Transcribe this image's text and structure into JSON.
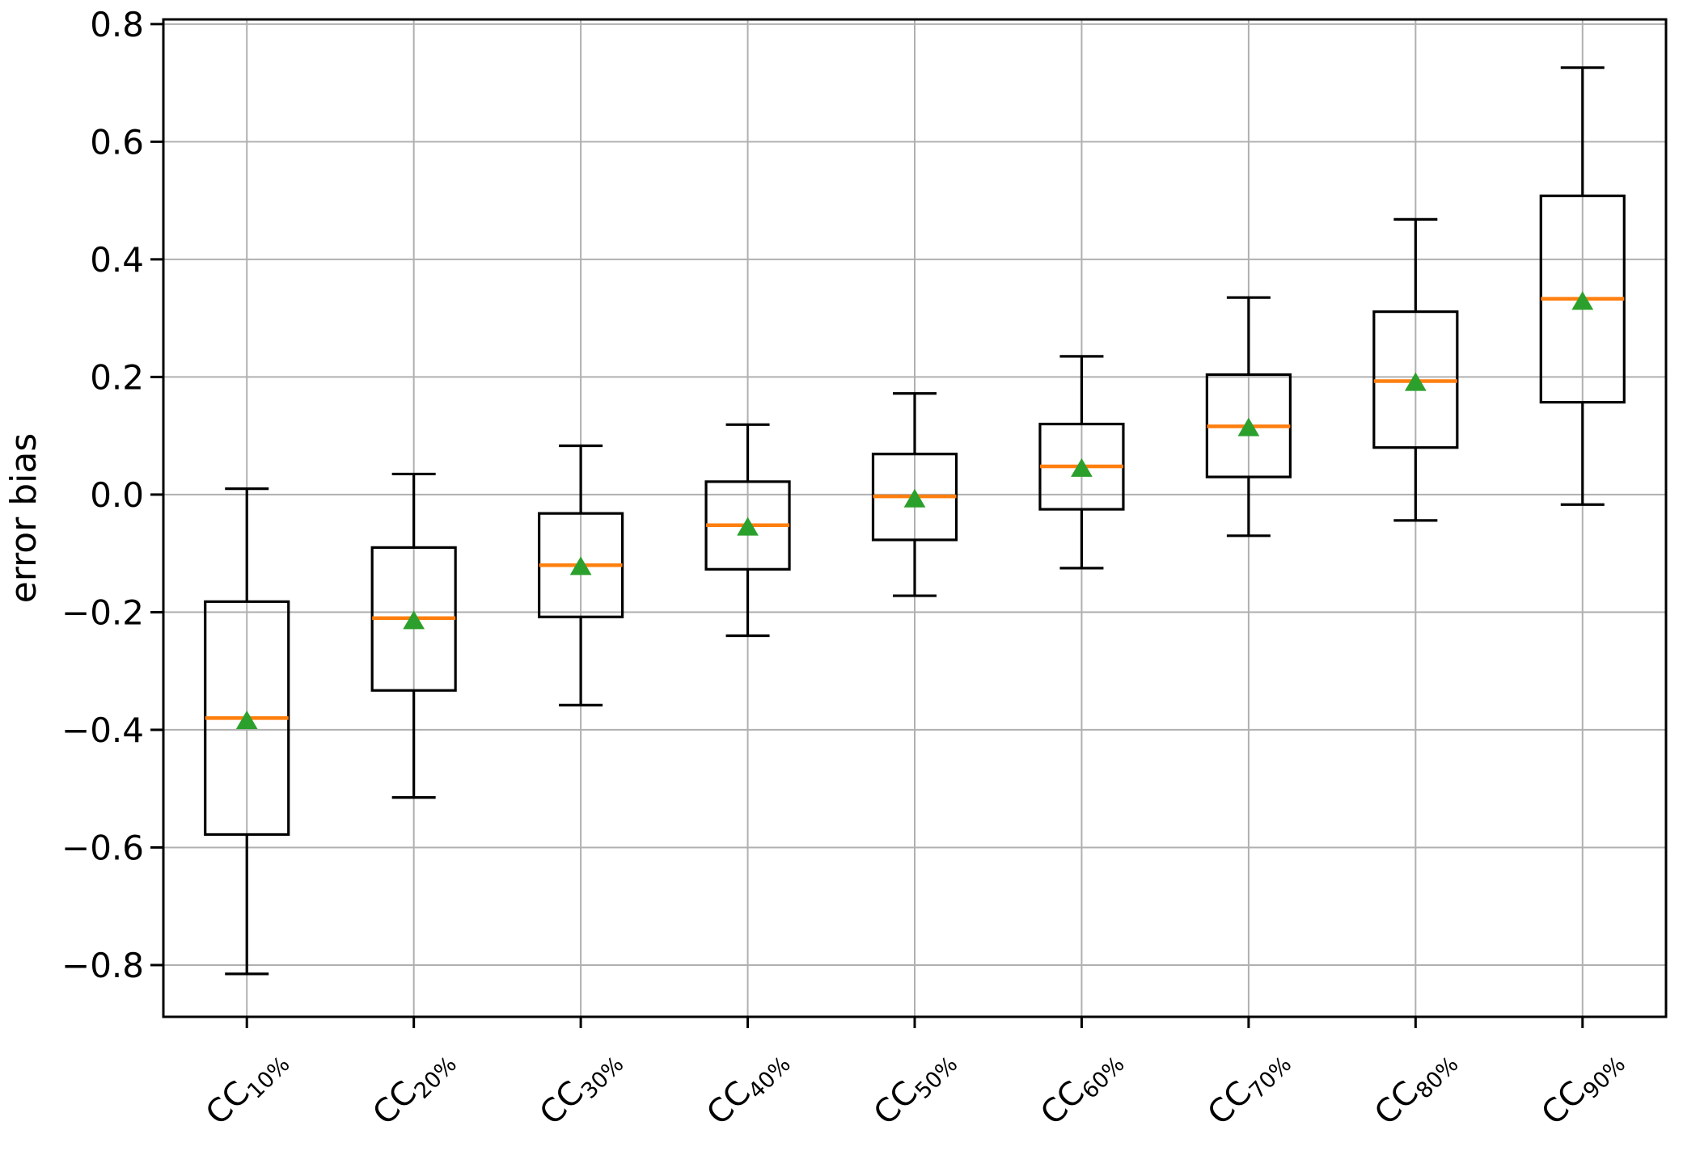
{
  "chart_data": {
    "type": "boxplot",
    "title": "",
    "xlabel": "",
    "ylabel": "error bias",
    "ylim": [
      -0.888,
      0.808
    ],
    "yticks": [
      0.8,
      0.6,
      0.4,
      0.2,
      0.0,
      -0.2,
      -0.4,
      -0.6,
      -0.8
    ],
    "ytick_labels": [
      "0.8",
      "0.6",
      "0.4",
      "0.2",
      "0.0",
      "−0.2",
      "−0.4",
      "−0.6",
      "−0.8"
    ],
    "grid": true,
    "legend": false,
    "colors": {
      "box_line": "#000000",
      "whisker_line": "#000000",
      "median_line": "#ff7f0e",
      "mean_marker": "#2ca02c",
      "grid_line": "#b0b0b0",
      "background": "#ffffff"
    },
    "categories": [
      "CC10%",
      "CC20%",
      "CC30%",
      "CC40%",
      "CC50%",
      "CC60%",
      "CC70%",
      "CC80%",
      "CC90%"
    ],
    "boxes": [
      {
        "label_base": "CC",
        "label_sub": "10%",
        "whisker_low": -0.815,
        "q1": -0.578,
        "median": -0.38,
        "mean": -0.385,
        "q3": -0.182,
        "whisker_high": 0.01
      },
      {
        "label_base": "CC",
        "label_sub": "20%",
        "whisker_low": -0.515,
        "q1": -0.333,
        "median": -0.21,
        "mean": -0.215,
        "q3": -0.09,
        "whisker_high": 0.035
      },
      {
        "label_base": "CC",
        "label_sub": "30%",
        "whisker_low": -0.358,
        "q1": -0.208,
        "median": -0.12,
        "mean": -0.123,
        "q3": -0.032,
        "whisker_high": 0.083
      },
      {
        "label_base": "CC",
        "label_sub": "40%",
        "whisker_low": -0.24,
        "q1": -0.127,
        "median": -0.052,
        "mean": -0.056,
        "q3": 0.022,
        "whisker_high": 0.119
      },
      {
        "label_base": "CC",
        "label_sub": "50%",
        "whisker_low": -0.172,
        "q1": -0.077,
        "median": -0.003,
        "mean": -0.008,
        "q3": 0.069,
        "whisker_high": 0.172
      },
      {
        "label_base": "CC",
        "label_sub": "60%",
        "whisker_low": -0.125,
        "q1": -0.025,
        "median": 0.048,
        "mean": 0.044,
        "q3": 0.12,
        "whisker_high": 0.235
      },
      {
        "label_base": "CC",
        "label_sub": "70%",
        "whisker_low": -0.07,
        "q1": 0.03,
        "median": 0.116,
        "mean": 0.113,
        "q3": 0.204,
        "whisker_high": 0.335
      },
      {
        "label_base": "CC",
        "label_sub": "80%",
        "whisker_low": -0.044,
        "q1": 0.08,
        "median": 0.193,
        "mean": 0.19,
        "q3": 0.311,
        "whisker_high": 0.468
      },
      {
        "label_base": "CC",
        "label_sub": "90%",
        "whisker_low": -0.017,
        "q1": 0.157,
        "median": 0.333,
        "mean": 0.328,
        "q3": 0.508,
        "whisker_high": 0.726
      }
    ]
  }
}
